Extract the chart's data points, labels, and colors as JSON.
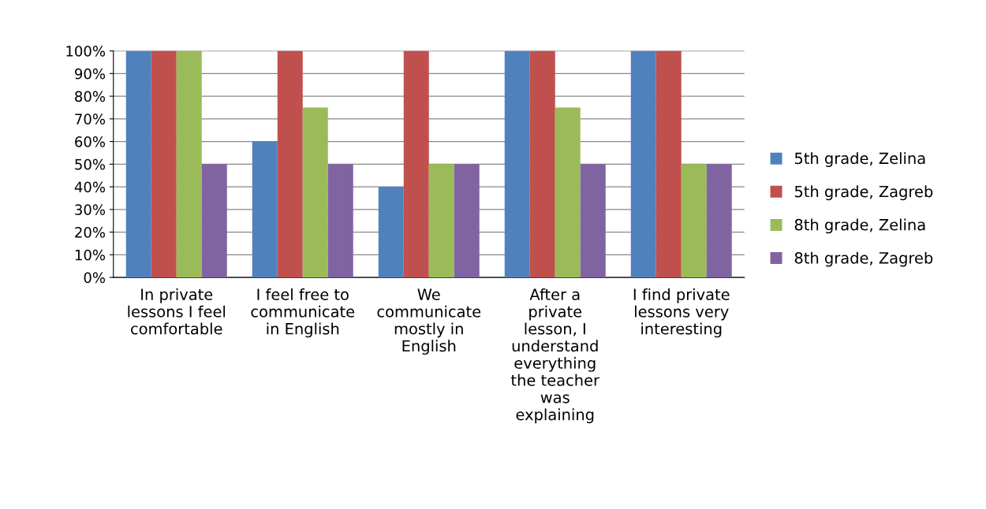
{
  "chart_data": {
    "type": "bar",
    "categories": [
      "In private\nlessons I feel\ncomfortable",
      "I feel free to\ncommunicate\nin English",
      "We\ncommunicate\nmostly in\nEnglish",
      "After a\nprivate\nlesson, I\nunderstand\neverything\nthe teacher\nwas\nexplaining",
      "I find private\nlessons very\ninteresting"
    ],
    "series": [
      {
        "name": "5th grade, Zelina",
        "color": "#4f81bd",
        "values": [
          100,
          60,
          40,
          100,
          100
        ]
      },
      {
        "name": "5th grade, Zagreb",
        "color": "#c0504d",
        "values": [
          100,
          100,
          100,
          100,
          100
        ]
      },
      {
        "name": "8th grade, Zelina",
        "color": "#9bbb59",
        "values": [
          100,
          75,
          50,
          75,
          50
        ]
      },
      {
        "name": "8th grade, Zagreb",
        "color": "#8064a2",
        "values": [
          50,
          50,
          50,
          50,
          50
        ]
      }
    ],
    "ylim": [
      0,
      100
    ],
    "yticks": [
      {
        "value": 0,
        "label": "0%"
      },
      {
        "value": 10,
        "label": "10%"
      },
      {
        "value": 20,
        "label": "20%"
      },
      {
        "value": 30,
        "label": "30%"
      },
      {
        "value": 40,
        "label": "40%"
      },
      {
        "value": 50,
        "label": "50%"
      },
      {
        "value": 60,
        "label": "60%"
      },
      {
        "value": 70,
        "label": "70%"
      },
      {
        "value": 80,
        "label": "80%"
      },
      {
        "value": 90,
        "label": "90%"
      },
      {
        "value": 100,
        "label": "100%"
      }
    ],
    "grid": "y",
    "legend": "right"
  }
}
